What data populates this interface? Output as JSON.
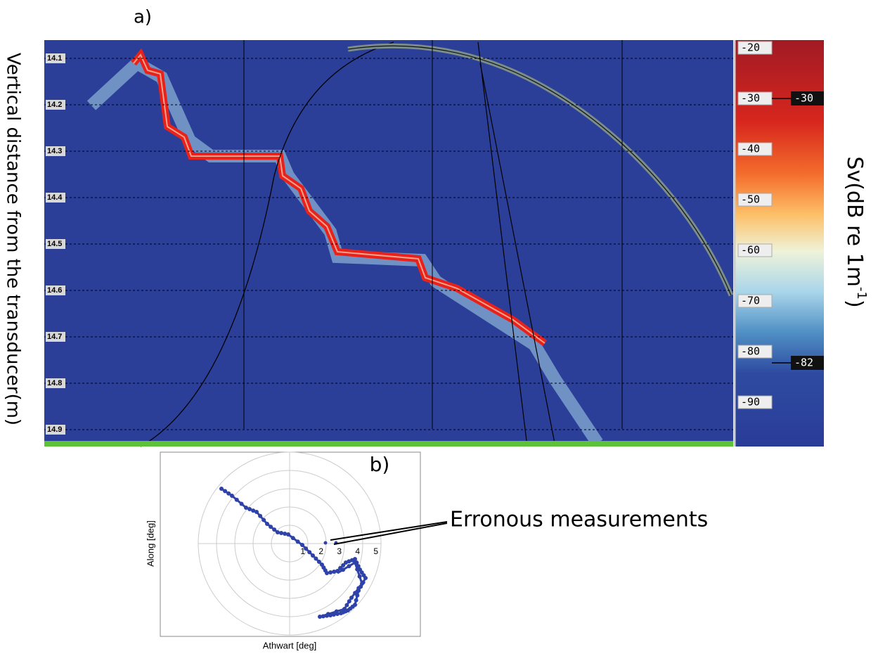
{
  "panel_a": {
    "label": "a)",
    "y_axis_label": "Vertical distance from the transducer(m)",
    "y_ticks": [
      "14.1",
      "14.2",
      "14.3",
      "14.4",
      "14.5",
      "14.6",
      "14.7",
      "14.8",
      "14.9"
    ],
    "colorbar": {
      "label_parts": [
        "Sv(dB re 1m",
        "-1",
        ")"
      ],
      "ticks": [
        "-20",
        "-30",
        "-40",
        "-50",
        "-60",
        "-70",
        "-80",
        "-90"
      ],
      "markers": [
        "-30",
        "-82"
      ]
    }
  },
  "panel_b": {
    "label": "b)",
    "x_axis_label": "Athwart [deg]",
    "y_axis_label": "Along [deg]",
    "ring_labels": [
      "1",
      "2",
      "3",
      "4",
      "5"
    ],
    "annotation": "Erronous measurements"
  }
}
